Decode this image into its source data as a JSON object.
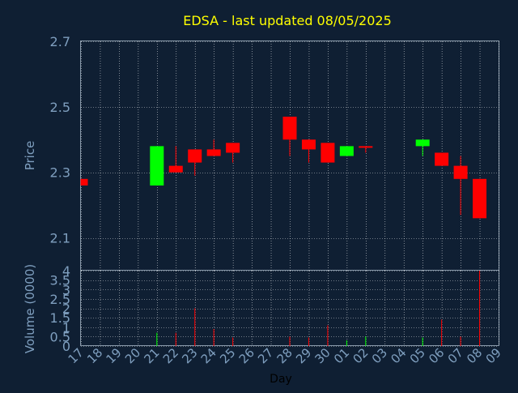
{
  "title": "EDSA - last updated 08/05/2025",
  "colors": {
    "background": "#0f1f33",
    "axis_text": "#7f9fbf",
    "title": "#ffff00",
    "up": "#00ff00",
    "down": "#ff0000",
    "grid": "#ffffff"
  },
  "chart_data": [
    {
      "type": "candlestick",
      "ylabel": "Price",
      "ylim": [
        2.0,
        2.7
      ],
      "yticks": [
        "2.7",
        "2.5",
        "2.3",
        "2.1"
      ],
      "grid": true,
      "candles": [
        {
          "day": "17",
          "open": 2.28,
          "high": 2.28,
          "low": 2.26,
          "close": 2.26
        },
        {
          "day": "21",
          "open": 2.26,
          "high": 2.38,
          "low": 2.26,
          "close": 2.38
        },
        {
          "day": "22",
          "open": 2.32,
          "high": 2.38,
          "low": 2.3,
          "close": 2.3
        },
        {
          "day": "23",
          "open": 2.37,
          "high": 2.37,
          "low": 2.29,
          "close": 2.33
        },
        {
          "day": "24",
          "open": 2.37,
          "high": 2.4,
          "low": 2.35,
          "close": 2.35
        },
        {
          "day": "25",
          "open": 2.39,
          "high": 2.39,
          "low": 2.33,
          "close": 2.36
        },
        {
          "day": "28",
          "open": 2.47,
          "high": 2.47,
          "low": 2.35,
          "close": 2.4
        },
        {
          "day": "29",
          "open": 2.4,
          "high": 2.4,
          "low": 2.33,
          "close": 2.37
        },
        {
          "day": "30",
          "open": 2.39,
          "high": 2.39,
          "low": 2.33,
          "close": 2.33
        },
        {
          "day": "01",
          "open": 2.35,
          "high": 2.38,
          "low": 2.35,
          "close": 2.38
        },
        {
          "day": "02",
          "open": 2.38,
          "high": 2.38,
          "low": 2.36,
          "close": 2.38
        },
        {
          "day": "05",
          "open": 2.38,
          "high": 2.4,
          "low": 2.35,
          "close": 2.4
        },
        {
          "day": "06",
          "open": 2.36,
          "high": 2.36,
          "low": 2.32,
          "close": 2.32
        },
        {
          "day": "07",
          "open": 2.32,
          "high": 2.35,
          "low": 2.17,
          "close": 2.28
        },
        {
          "day": "08",
          "open": 2.28,
          "high": 2.28,
          "low": 2.16,
          "close": 2.16
        }
      ]
    },
    {
      "type": "bar",
      "ylabel": "Volume (0000)",
      "xlabel": "Day",
      "ylim": [
        0,
        4
      ],
      "yticks": [
        "4",
        "3.5",
        "3",
        "2.5",
        "2",
        "1.5",
        "1",
        "0.5",
        "0"
      ],
      "grid": true,
      "categories": [
        "17",
        "18",
        "19",
        "20",
        "21",
        "22",
        "23",
        "24",
        "25",
        "26",
        "27",
        "28",
        "29",
        "30",
        "01",
        "02",
        "03",
        "04",
        "05",
        "06",
        "07",
        "08",
        "09"
      ],
      "values": [
        0,
        0,
        0,
        0,
        0.7,
        0.7,
        2.0,
        0.9,
        0.45,
        0,
        0,
        0.5,
        0.45,
        1.1,
        0.3,
        0.5,
        0,
        0,
        0.45,
        1.4,
        0.5,
        4.0,
        0
      ],
      "direction": [
        "down",
        "none",
        "none",
        "none",
        "up",
        "down",
        "down",
        "down",
        "down",
        "none",
        "none",
        "down",
        "down",
        "down",
        "up",
        "up",
        "none",
        "none",
        "up",
        "down",
        "down",
        "down",
        "none"
      ]
    }
  ]
}
